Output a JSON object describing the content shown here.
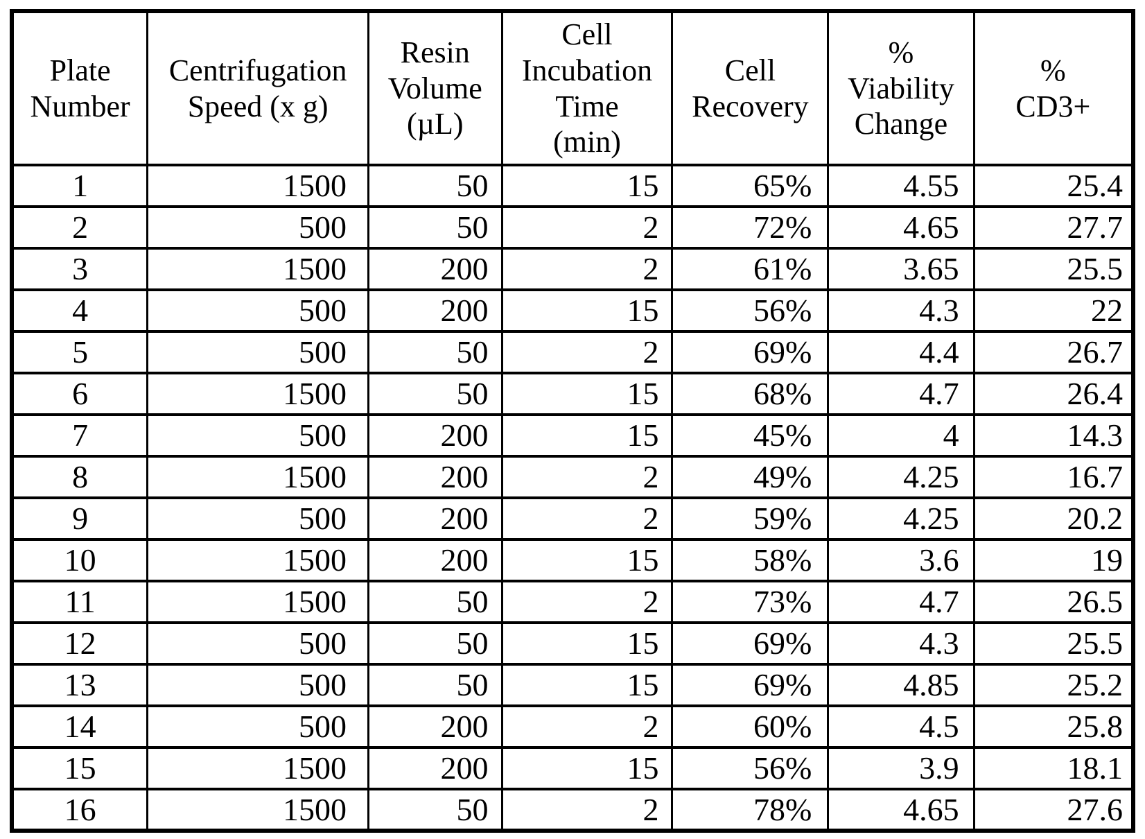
{
  "colors": {
    "background": "#ffffff",
    "grid": "#000000",
    "text": "#000000"
  },
  "table": {
    "headers": [
      "Plate\nNumber",
      "Centrifugation\nSpeed (x g)",
      "Resin\nVolume\n(µL)",
      "Cell\nIncubation\nTime\n(min)",
      "Cell\nRecovery",
      "%\nViability\nChange",
      "%\nCD3+"
    ],
    "rows": [
      [
        "1",
        "1500",
        "50",
        "15",
        "65%",
        "4.55",
        "25.4"
      ],
      [
        "2",
        "500",
        "50",
        "2",
        "72%",
        "4.65",
        "27.7"
      ],
      [
        "3",
        "1500",
        "200",
        "2",
        "61%",
        "3.65",
        "25.5"
      ],
      [
        "4",
        "500",
        "200",
        "15",
        "56%",
        "4.3",
        "22"
      ],
      [
        "5",
        "500",
        "50",
        "2",
        "69%",
        "4.4",
        "26.7"
      ],
      [
        "6",
        "1500",
        "50",
        "15",
        "68%",
        "4.7",
        "26.4"
      ],
      [
        "7",
        "500",
        "200",
        "15",
        "45%",
        "4",
        "14.3"
      ],
      [
        "8",
        "1500",
        "200",
        "2",
        "49%",
        "4.25",
        "16.7"
      ],
      [
        "9",
        "500",
        "200",
        "2",
        "59%",
        "4.25",
        "20.2"
      ],
      [
        "10",
        "1500",
        "200",
        "15",
        "58%",
        "3.6",
        "19"
      ],
      [
        "11",
        "1500",
        "50",
        "2",
        "73%",
        "4.7",
        "26.5"
      ],
      [
        "12",
        "500",
        "50",
        "15",
        "69%",
        "4.3",
        "25.5"
      ],
      [
        "13",
        "500",
        "50",
        "15",
        "69%",
        "4.85",
        "25.2"
      ],
      [
        "14",
        "500",
        "200",
        "2",
        "60%",
        "4.5",
        "25.8"
      ],
      [
        "15",
        "1500",
        "200",
        "15",
        "56%",
        "3.9",
        "18.1"
      ],
      [
        "16",
        "1500",
        "50",
        "2",
        "78%",
        "4.65",
        "27.6"
      ]
    ]
  }
}
